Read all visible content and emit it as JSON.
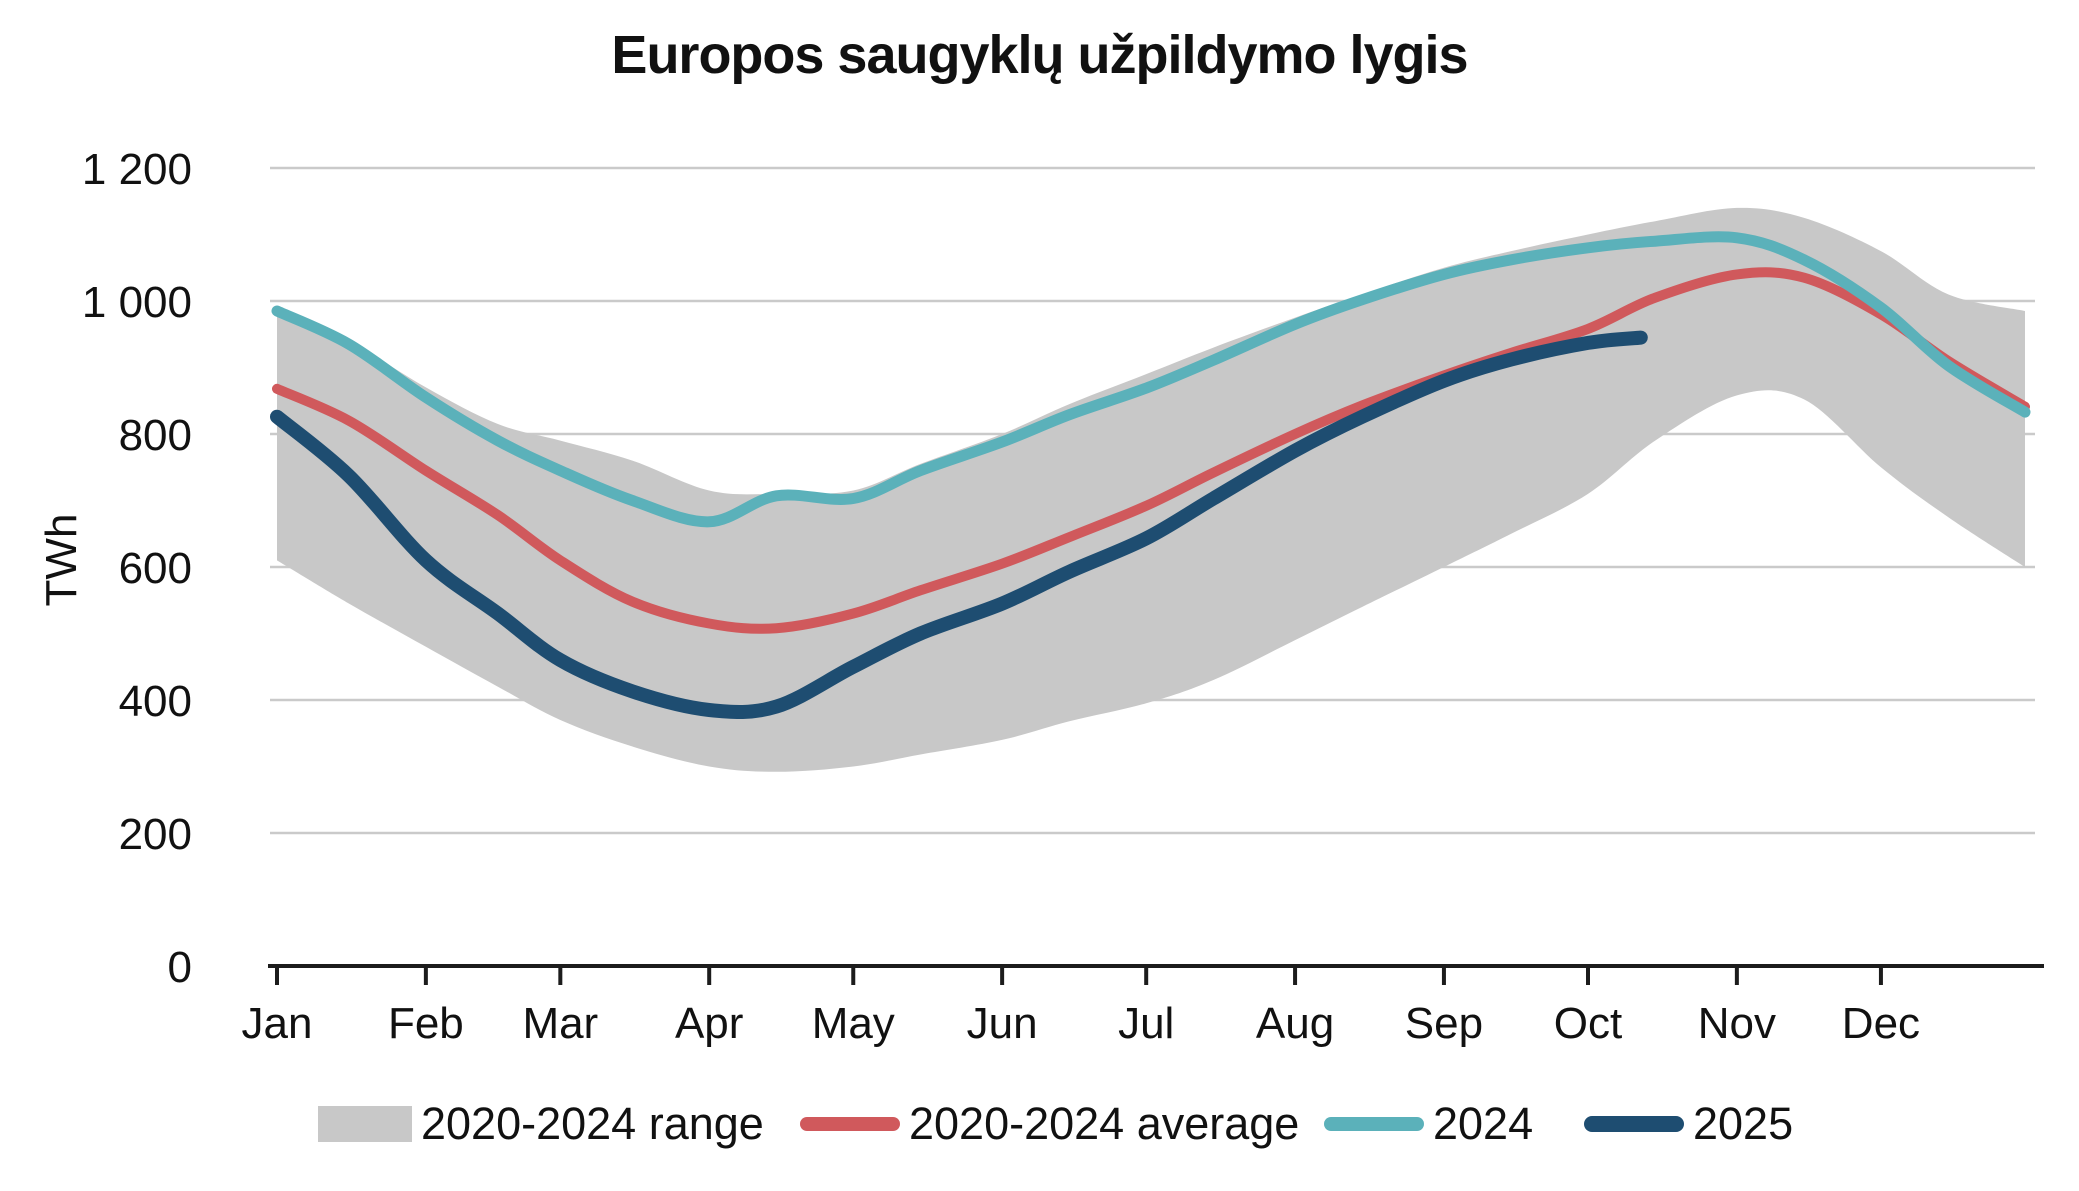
{
  "title": "Europos saugyklų užpildymo lygis",
  "y_axis": {
    "label": "TWh"
  },
  "colors": {
    "range_band": "#c8c8c8",
    "average_line": "#d0595c",
    "line_2024": "#5bb1ba",
    "line_2025": "#1e4d71",
    "gridline": "#cacaca",
    "axis": "#1c1c1c",
    "text": "#111111"
  },
  "legend": {
    "items": [
      {
        "label": "2020-2024 range",
        "type": "band",
        "color": "#c8c8c8"
      },
      {
        "label": "2020-2024 average",
        "type": "line",
        "color": "#d0595c"
      },
      {
        "label": "2024",
        "type": "line",
        "color": "#5bb1ba"
      },
      {
        "label": "2025",
        "type": "line",
        "color": "#1e4d71"
      }
    ]
  },
  "chart_data": {
    "type": "line",
    "title": "Europos saugyklų užpildymo lygis",
    "xlabel": "",
    "ylabel": "TWh",
    "ylim": [
      0,
      1200
    ],
    "grid": "horizontal",
    "legend_position": "bottom",
    "x_unit": "day_of_year",
    "x_tick_labels": [
      "Jan",
      "Feb",
      "Mar",
      "Apr",
      "May",
      "Jun",
      "Jul",
      "Aug",
      "Sep",
      "Oct",
      "Nov",
      "Dec"
    ],
    "month_tick_days": [
      0,
      31,
      59,
      90,
      120,
      151,
      181,
      212,
      243,
      273,
      304,
      334
    ],
    "y_ticks": {
      "values": [
        0,
        200,
        400,
        600,
        800,
        1000,
        1200
      ],
      "labels": [
        "0",
        "200",
        "400",
        "600",
        "800",
        "1 000",
        "1 200"
      ]
    },
    "sample_dates": [
      "Jan 1",
      "Jan 16",
      "Feb 1",
      "Feb 16",
      "Mar 1",
      "Mar 16",
      "Apr 1",
      "Apr 15",
      "May 1",
      "May 15",
      "Jun 1",
      "Jun 15",
      "Jul 1",
      "Jul 15",
      "Aug 1",
      "Aug 15",
      "Sep 1",
      "Sep 15",
      "Oct 1",
      "Oct 15",
      "Nov 1",
      "Nov 16",
      "Dec 1",
      "Dec 15",
      "Dec 31"
    ],
    "series": [
      {
        "name": "2020-2024 range",
        "type": "band",
        "color": "#c8c8c8",
        "x": [
          0,
          15,
          31,
          46,
          59,
          74,
          90,
          104,
          120,
          134,
          151,
          165,
          181,
          195,
          212,
          226,
          243,
          257,
          273,
          287,
          304,
          318,
          334,
          348,
          364
        ],
        "upper": [
          990,
          940,
          870,
          815,
          790,
          760,
          715,
          710,
          715,
          755,
          800,
          845,
          890,
          930,
          975,
          1010,
          1050,
          1075,
          1100,
          1120,
          1140,
          1125,
          1075,
          1010,
          985
        ],
        "lower": [
          610,
          545,
          480,
          420,
          370,
          330,
          300,
          292,
          300,
          318,
          340,
          368,
          395,
          430,
          490,
          540,
          600,
          650,
          710,
          790,
          858,
          852,
          750,
          675,
          600
        ]
      },
      {
        "name": "2020-2024 average",
        "type": "line",
        "color": "#d0595c",
        "stroke_width": 10,
        "x": [
          0,
          15,
          31,
          46,
          59,
          74,
          90,
          104,
          120,
          134,
          151,
          165,
          181,
          195,
          212,
          226,
          243,
          257,
          273,
          287,
          304,
          318,
          334,
          348,
          364
        ],
        "values": [
          868,
          820,
          745,
          678,
          610,
          548,
          515,
          508,
          530,
          565,
          605,
          645,
          692,
          742,
          800,
          843,
          888,
          922,
          958,
          1005,
          1040,
          1035,
          980,
          910,
          841
        ]
      },
      {
        "name": "2024",
        "type": "line",
        "color": "#5bb1ba",
        "stroke_width": 11,
        "x": [
          0,
          15,
          31,
          46,
          59,
          74,
          90,
          104,
          120,
          134,
          151,
          165,
          181,
          195,
          212,
          226,
          243,
          257,
          273,
          287,
          304,
          318,
          334,
          348,
          364
        ],
        "values": [
          985,
          935,
          855,
          790,
          745,
          700,
          668,
          707,
          703,
          745,
          788,
          829,
          869,
          911,
          965,
          1002,
          1040,
          1062,
          1080,
          1090,
          1095,
          1062,
          990,
          903,
          833
        ]
      },
      {
        "name": "2025",
        "type": "line",
        "color": "#1e4d71",
        "stroke_width": 14,
        "ends_at_day": 284,
        "x": [
          0,
          15,
          31,
          46,
          59,
          74,
          90,
          104,
          120,
          134,
          151,
          165,
          181,
          195,
          212,
          226,
          243,
          257,
          273,
          284
        ],
        "values": [
          826,
          737,
          610,
          530,
          460,
          413,
          385,
          390,
          450,
          500,
          545,
          593,
          643,
          703,
          775,
          826,
          880,
          912,
          937,
          945
        ]
      }
    ]
  }
}
